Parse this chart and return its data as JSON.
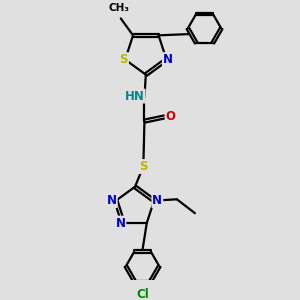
{
  "bg_color": "#e0e0e0",
  "bond_color": "#000000",
  "S_color": "#b8b800",
  "N_color": "#0000cc",
  "O_color": "#cc0000",
  "Cl_color": "#008800",
  "NH_color": "#008888",
  "font_size": 8.5,
  "small_font": 7.5,
  "bond_width": 1.6,
  "doffset": 0.055,
  "figsize": [
    3.0,
    3.0
  ],
  "dpi": 100,
  "xlim": [
    0,
    10
  ],
  "ylim": [
    0,
    10
  ]
}
